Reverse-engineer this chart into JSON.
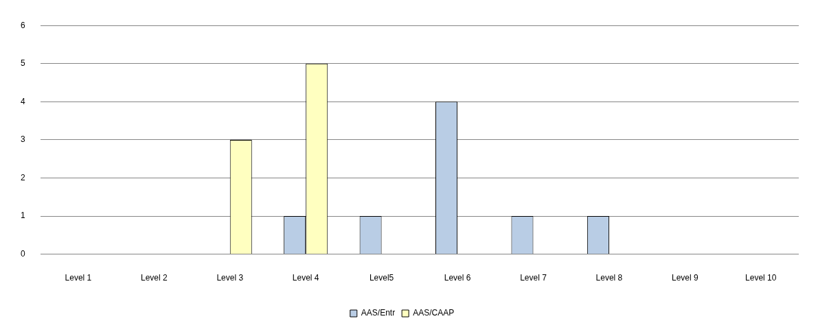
{
  "chart_data": {
    "type": "bar",
    "categories": [
      "Level 1",
      "Level 2",
      "Level 3",
      "Level 4",
      "Level5",
      "Level 6",
      "Level 7",
      "Level 8",
      "Level 9",
      "Level 10"
    ],
    "series": [
      {
        "name": "AAS/Entr",
        "color": "#b9cde5",
        "values": [
          0,
          0,
          0,
          1,
          1,
          4,
          1,
          1,
          0,
          0
        ]
      },
      {
        "name": "AAS/CAAP",
        "color": "#ffffc0",
        "values": [
          0,
          0,
          3,
          5,
          0,
          0,
          0,
          0,
          0,
          0
        ]
      }
    ],
    "ylim": [
      0,
      6
    ],
    "yticks": [
      0,
      1,
      2,
      3,
      4,
      5,
      6
    ],
    "grid": "y",
    "legend": "bottom"
  }
}
